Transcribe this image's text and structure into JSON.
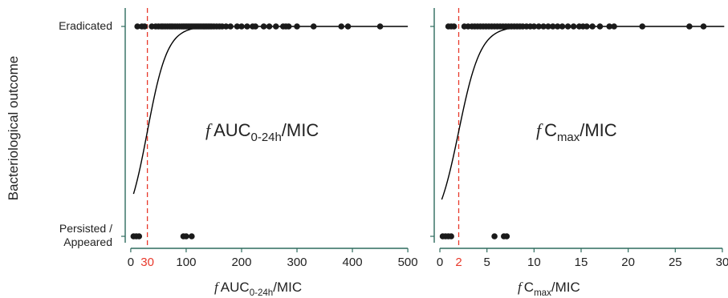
{
  "ylabel": "Bacteriological outcome",
  "y_categories": {
    "top": "Eradicated",
    "bottom_line1": "Persisted /",
    "bottom_line2": "Appeared"
  },
  "colors": {
    "axis": "#2e6b5e",
    "points": "#1a1a1a",
    "curve": "#000000",
    "threshold": "#e8392b"
  },
  "chart_data": [
    {
      "type": "scatter",
      "annotation": {
        "italic": "f",
        "main": "AUC",
        "sub": "0-24h",
        "suffix": "/MIC"
      },
      "xlabel": {
        "italic": "f",
        "main": "AUC",
        "sub": "0-24h",
        "suffix": "/MIC"
      },
      "xlim": [
        -10,
        510
      ],
      "xticks": [
        0,
        100,
        200,
        300,
        400,
        500
      ],
      "threshold": {
        "value": 30,
        "label": "30"
      },
      "eradicated_x": [
        12,
        20,
        25,
        38,
        45,
        50,
        55,
        58,
        62,
        66,
        70,
        73,
        76,
        80,
        84,
        88,
        92,
        95,
        98,
        101,
        104,
        107,
        110,
        113,
        116,
        119,
        122,
        125,
        128,
        131,
        134,
        137,
        140,
        143,
        146,
        150,
        155,
        160,
        165,
        172,
        180,
        192,
        200,
        210,
        220,
        225,
        240,
        250,
        262,
        275,
        280,
        285,
        300,
        330,
        380,
        392,
        450
      ],
      "persisted_x": [
        5,
        10,
        15,
        95,
        100,
        110
      ],
      "logistic": {
        "midpoint": 30,
        "slope": 0.055,
        "x_start": 5,
        "x_end": 500
      }
    },
    {
      "type": "scatter",
      "annotation": {
        "italic": "f",
        "main": "C",
        "sub": "max",
        "suffix": "/MIC"
      },
      "xlabel": {
        "italic": "f",
        "main": "C",
        "sub": "max",
        "suffix": "/MIC"
      },
      "xlim": [
        -0.6,
        30.6
      ],
      "xticks": [
        0,
        5,
        10,
        15,
        20,
        25,
        30
      ],
      "threshold": {
        "value": 2,
        "label": "2"
      },
      "eradicated_x": [
        0.9,
        1.2,
        1.5,
        2.6,
        3.0,
        3.4,
        3.7,
        4.0,
        4.3,
        4.6,
        4.9,
        5.2,
        5.5,
        5.8,
        6.1,
        6.4,
        6.7,
        7.0,
        7.3,
        7.6,
        7.9,
        8.2,
        8.5,
        8.8,
        9.2,
        9.6,
        10.0,
        10.5,
        11.0,
        11.5,
        12.0,
        12.5,
        13.0,
        13.6,
        14.2,
        14.8,
        15.2,
        15.6,
        16.2,
        17.0,
        18.0,
        18.5,
        21.5,
        26.5,
        28.0
      ],
      "persisted_x": [
        0.3,
        0.6,
        0.9,
        1.2,
        5.8,
        6.8,
        7.1
      ],
      "logistic": {
        "midpoint": 2,
        "slope": 0.86,
        "x_start": 0.2,
        "x_end": 30.2
      }
    }
  ]
}
